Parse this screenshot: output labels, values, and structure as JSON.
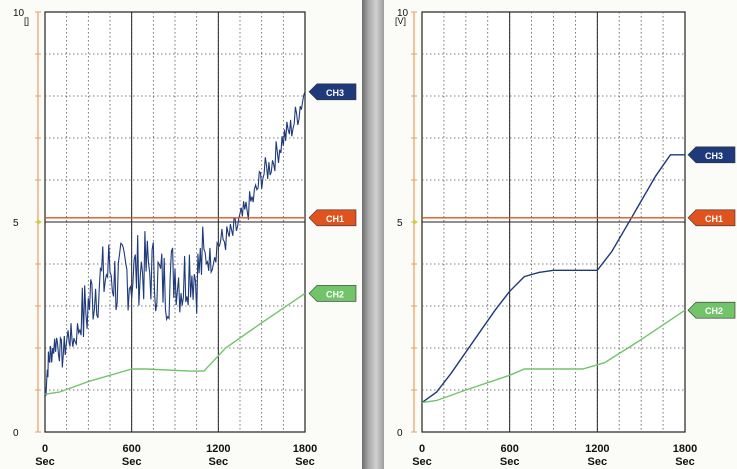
{
  "chart_data": [
    {
      "type": "line",
      "y_unit_label": "[]",
      "xlim": [
        0,
        1800
      ],
      "ylim": [
        0,
        10
      ],
      "x_ticks": [
        0,
        600,
        1200,
        1800
      ],
      "x_unit_label": "Sec",
      "y_ticks": [
        0,
        5,
        10
      ],
      "grid": true,
      "legend_position": "right",
      "series": [
        {
          "name": "CH3",
          "color": "#1f3a7a",
          "noisy": true,
          "x": [
            0,
            20,
            40,
            80,
            120,
            160,
            200,
            250,
            300,
            350,
            400,
            450,
            500,
            550,
            600,
            650,
            700,
            750,
            800,
            850,
            900,
            950,
            1000,
            1050,
            1100,
            1150,
            1200,
            1250,
            1300,
            1350,
            1400,
            1450,
            1500,
            1550,
            1600,
            1650,
            1700,
            1750,
            1800
          ],
          "y": [
            0.9,
            1.6,
            1.9,
            2.2,
            1.8,
            2.3,
            2.2,
            2.6,
            3.0,
            3.5,
            3.6,
            3.9,
            3.5,
            3.8,
            3.7,
            3.9,
            3.9,
            3.8,
            3.6,
            3.5,
            3.9,
            3.5,
            4.0,
            3.7,
            4.2,
            4.1,
            4.5,
            4.6,
            4.7,
            5.0,
            5.3,
            5.6,
            6.1,
            6.3,
            6.6,
            7.0,
            7.2,
            7.6,
            8.1
          ]
        },
        {
          "name": "CH1",
          "color": "#e0531f",
          "noisy": false,
          "x": [
            0,
            1800
          ],
          "y": [
            5.1,
            5.1
          ]
        },
        {
          "name": "CH2",
          "color": "#72c46a",
          "noisy": false,
          "x": [
            0,
            100,
            300,
            600,
            700,
            1000,
            1100,
            1250,
            1500,
            1800
          ],
          "y": [
            0.9,
            0.95,
            1.2,
            1.5,
            1.5,
            1.45,
            1.45,
            2.0,
            2.6,
            3.3
          ]
        }
      ]
    },
    {
      "type": "line",
      "y_unit_label": "[V]",
      "xlim": [
        0,
        1800
      ],
      "ylim": [
        0,
        10
      ],
      "x_ticks": [
        0,
        600,
        1200,
        1800
      ],
      "x_unit_label": "Sec",
      "y_ticks": [
        0,
        5,
        10
      ],
      "grid": true,
      "legend_position": "right",
      "series": [
        {
          "name": "CH3",
          "color": "#1f3a7a",
          "noisy": false,
          "x": [
            0,
            100,
            200,
            300,
            400,
            500,
            600,
            700,
            800,
            900,
            1000,
            1100,
            1200,
            1300,
            1400,
            1500,
            1600,
            1700,
            1800
          ],
          "y": [
            0.7,
            0.95,
            1.4,
            1.9,
            2.4,
            2.9,
            3.35,
            3.7,
            3.8,
            3.85,
            3.85,
            3.85,
            3.85,
            4.3,
            4.9,
            5.5,
            6.1,
            6.6,
            6.6
          ]
        },
        {
          "name": "CH1",
          "color": "#e0531f",
          "noisy": false,
          "x": [
            0,
            1800
          ],
          "y": [
            5.1,
            5.1
          ]
        },
        {
          "name": "CH2",
          "color": "#72c46a",
          "noisy": false,
          "x": [
            0,
            100,
            300,
            600,
            700,
            1000,
            1100,
            1250,
            1500,
            1800
          ],
          "y": [
            0.7,
            0.75,
            1.0,
            1.35,
            1.5,
            1.5,
            1.5,
            1.65,
            2.2,
            2.9
          ]
        }
      ]
    }
  ]
}
